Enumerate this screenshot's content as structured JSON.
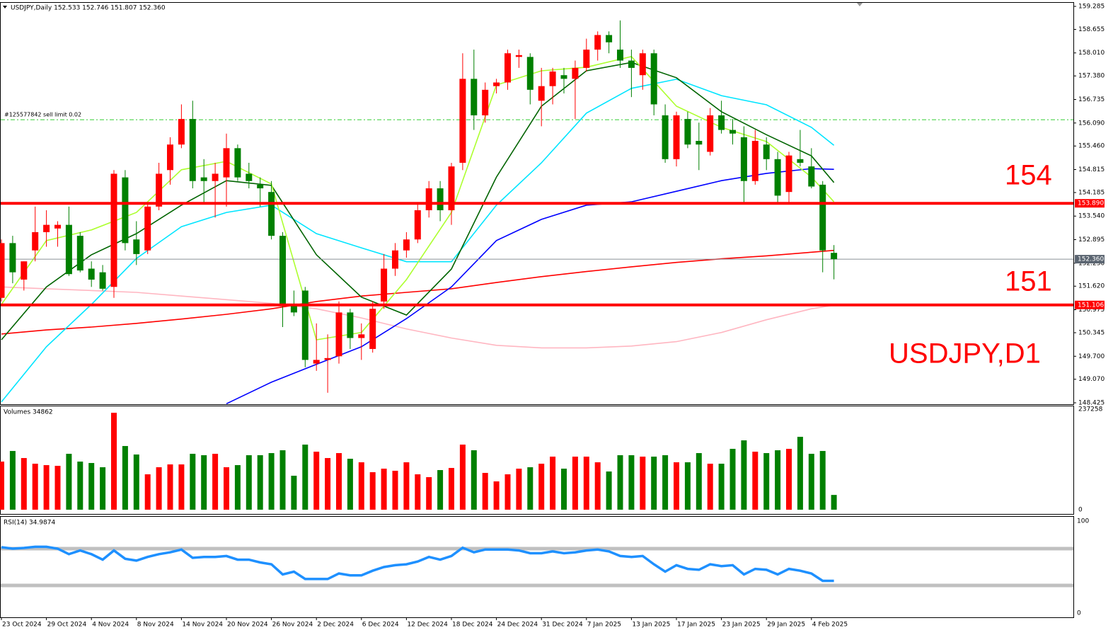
{
  "chart_data": [
    {
      "type": "candlestick",
      "title": "USDJPY,Daily  152.533 152.746 151.807 152.360",
      "categories": [
        "23 Oct 2024",
        null,
        null,
        null,
        "29 Oct 2024",
        null,
        null,
        null,
        "4 Nov 2024",
        null,
        null,
        null,
        "8 Nov 2024",
        null,
        null,
        null,
        "14 Nov 2024",
        null,
        null,
        null,
        "20 Nov 2024",
        null,
        null,
        null,
        "26 Nov 2024",
        null,
        null,
        null,
        "2 Dec 2024",
        null,
        null,
        null,
        "6 Dec 2024",
        null,
        null,
        null,
        "12 Dec 2024",
        null,
        null,
        null,
        "18 Dec 2024",
        null,
        null,
        null,
        "24 Dec 2024",
        null,
        null,
        null,
        "31 Dec 2024",
        null,
        null,
        null,
        "7 Jan 2025",
        null,
        null,
        null,
        "13 Jan 2025",
        null,
        null,
        null,
        "17 Jan 2025",
        null,
        null,
        null,
        "23 Jan 2025",
        null,
        null,
        null,
        "29 Jan 2025",
        null,
        null,
        null,
        "4 Feb 2025",
        null,
        null
      ],
      "open": [
        151.3,
        152.8,
        151.8,
        152.6,
        153.1,
        153.2,
        153.3,
        153.0,
        152.1,
        152.0,
        151.6,
        154.6,
        152.9,
        152.6,
        153.8,
        154.8,
        155.5,
        156.2,
        154.6,
        154.5,
        154.6,
        155.4,
        154.7,
        154.4,
        154.2,
        153.0,
        151.1,
        151.5,
        149.5,
        149.6,
        149.7,
        150.9,
        150.2,
        149.9,
        151.2,
        152.1,
        152.6,
        152.9,
        153.7,
        154.3,
        153.7,
        155.0,
        157.3,
        156.3,
        157.1,
        157.2,
        157.9,
        157.9,
        156.7,
        157.1,
        157.4,
        157.3,
        157.6,
        158.1,
        158.5,
        158.1,
        157.8,
        157.4,
        158.0,
        156.3,
        155.1,
        156.2,
        155.6,
        155.3,
        156.3,
        155.9,
        155.7,
        154.5,
        155.5,
        155.1,
        154.2,
        155.1,
        154.9,
        154.4,
        152.533
      ],
      "high": [
        152.9,
        153.0,
        152.3,
        153.8,
        153.7,
        153.4,
        153.8,
        153.1,
        152.3,
        152.2,
        154.8,
        154.8,
        153.4,
        153.9,
        155.0,
        155.7,
        156.6,
        156.7,
        155.1,
        155.0,
        155.8,
        155.5,
        155.0,
        154.6,
        154.5,
        153.1,
        151.5,
        151.6,
        150.6,
        150.3,
        151.2,
        151.0,
        150.6,
        151.2,
        152.5,
        152.8,
        153.1,
        153.9,
        154.5,
        154.5,
        155.0,
        158.0,
        158.1,
        157.2,
        157.3,
        158.1,
        158.1,
        158.0,
        157.6,
        157.6,
        157.6,
        157.8,
        158.4,
        158.6,
        158.6,
        158.9,
        158.1,
        158.1,
        158.1,
        156.6,
        156.4,
        156.4,
        156.1,
        156.5,
        156.7,
        156.2,
        156.0,
        155.9,
        155.7,
        155.3,
        155.3,
        155.9,
        155.4,
        154.5,
        152.746
      ],
      "low": [
        151.2,
        151.7,
        151.5,
        152.3,
        152.7,
        152.7,
        151.9,
        152.0,
        151.6,
        151.5,
        151.3,
        152.6,
        152.2,
        152.5,
        153.7,
        154.4,
        155.4,
        154.3,
        153.9,
        153.5,
        153.8,
        154.5,
        154.3,
        153.8,
        152.9,
        150.5,
        150.8,
        149.4,
        149.3,
        148.7,
        149.5,
        149.9,
        149.6,
        149.8,
        151.0,
        151.9,
        152.4,
        152.8,
        153.5,
        153.4,
        153.3,
        154.8,
        155.9,
        156.1,
        156.9,
        157.0,
        157.6,
        156.6,
        156.0,
        156.6,
        156.9,
        156.2,
        157.5,
        157.8,
        158.0,
        157.6,
        156.8,
        157.0,
        156.3,
        155.0,
        154.9,
        155.4,
        154.8,
        155.2,
        155.8,
        155.5,
        153.9,
        154.4,
        154.8,
        153.9,
        153.9,
        154.9,
        154.3,
        152.0,
        151.807
      ],
      "close": [
        152.8,
        152.0,
        152.3,
        153.1,
        153.3,
        153.3,
        151.95,
        152.05,
        151.8,
        151.55,
        154.7,
        152.8,
        152.5,
        153.8,
        154.7,
        155.5,
        156.2,
        154.5,
        154.5,
        154.7,
        155.4,
        154.6,
        154.5,
        154.3,
        153.0,
        151.1,
        150.9,
        149.6,
        149.6,
        149.65,
        150.9,
        150.2,
        150.3,
        151.0,
        152.1,
        152.6,
        152.9,
        153.7,
        154.3,
        153.7,
        154.9,
        157.3,
        156.3,
        157.0,
        157.2,
        158.0,
        157.95,
        157.0,
        157.1,
        157.5,
        157.3,
        157.6,
        158.1,
        158.5,
        158.3,
        157.8,
        157.6,
        158.0,
        156.6,
        155.1,
        156.3,
        155.5,
        155.5,
        156.3,
        155.9,
        155.8,
        154.5,
        155.6,
        155.1,
        154.1,
        155.2,
        155.0,
        154.35,
        152.6,
        152.36
      ],
      "up_color": "#ff0000",
      "down_color": "#008000",
      "ylim": [
        148.425,
        159.285
      ],
      "yticks": [
        {
          "value": 159.285,
          "label": "159.285"
        },
        {
          "value": 158.655,
          "label": "158.655"
        },
        {
          "value": 158.01,
          "label": "158.010"
        },
        {
          "value": 157.38,
          "label": "157.380"
        },
        {
          "value": 156.735,
          "label": "156.735"
        },
        {
          "value": 156.09,
          "label": "156.090"
        },
        {
          "value": 155.46,
          "label": "155.460"
        },
        {
          "value": 154.815,
          "label": "154.815"
        },
        {
          "value": 154.185,
          "label": "154.185"
        },
        {
          "value": 153.54,
          "label": "153.540"
        },
        {
          "value": 152.895,
          "label": "152.895"
        },
        {
          "value": 152.25,
          "label": "152.250"
        },
        {
          "value": 151.62,
          "label": "151.620"
        },
        {
          "value": 150.975,
          "label": "150.975"
        },
        {
          "value": 150.345,
          "label": "150.345"
        },
        {
          "value": 149.7,
          "label": "149.700"
        },
        {
          "value": 149.07,
          "label": "149.070"
        },
        {
          "value": 148.425,
          "label": "148.425"
        }
      ],
      "moving_averages": [
        {
          "color": "#ffb6c1",
          "x": [
            0,
            4,
            8,
            12,
            16,
            20,
            24,
            28,
            32,
            36,
            40,
            44,
            48,
            52,
            56,
            60,
            64,
            68,
            72,
            74
          ],
          "values": [
            151.6,
            151.55,
            151.5,
            151.45,
            151.35,
            151.25,
            151.15,
            151.0,
            150.75,
            150.45,
            150.2,
            150.0,
            149.93,
            149.93,
            149.98,
            150.1,
            150.35,
            150.7,
            151.0,
            151.1
          ]
        },
        {
          "color": "#ff0000",
          "x": [
            0,
            4,
            8,
            12,
            16,
            20,
            24,
            28,
            32,
            36,
            40,
            44,
            48,
            52,
            56,
            60,
            64,
            68,
            72,
            74
          ],
          "values": [
            150.31,
            150.42,
            150.5,
            150.6,
            150.72,
            150.85,
            151.0,
            151.2,
            151.35,
            151.45,
            151.55,
            151.72,
            151.88,
            152.02,
            152.15,
            152.27,
            152.37,
            152.45,
            152.55,
            152.6
          ]
        },
        {
          "color": "#0000ff",
          "x": [
            20,
            24,
            28,
            32,
            36,
            40,
            44,
            48,
            52,
            56,
            60,
            64,
            68,
            72,
            74
          ],
          "values": [
            148.4,
            148.99,
            149.48,
            149.96,
            150.73,
            151.6,
            152.87,
            153.45,
            153.84,
            153.93,
            154.22,
            154.51,
            154.71,
            154.84,
            154.82
          ]
        },
        {
          "color": "#00e5ff",
          "x": [
            0,
            4,
            8,
            12,
            16,
            20,
            24,
            28,
            32,
            36,
            40,
            44,
            48,
            52,
            56,
            60,
            64,
            68,
            72,
            74
          ],
          "values": [
            148.45,
            149.96,
            151.12,
            152.38,
            153.25,
            153.64,
            153.84,
            153.06,
            152.67,
            152.29,
            152.29,
            153.84,
            155.0,
            156.36,
            157.04,
            157.29,
            156.84,
            156.59,
            155.97,
            155.48
          ]
        },
        {
          "color": "#006400",
          "x": [
            0,
            4,
            8,
            12,
            16,
            20,
            24,
            28,
            32,
            36,
            40,
            44,
            48,
            52,
            56,
            60,
            64,
            68,
            72,
            74
          ],
          "values": [
            150.15,
            151.6,
            152.48,
            153.06,
            153.84,
            154.51,
            154.38,
            152.48,
            151.32,
            150.83,
            152.09,
            154.61,
            156.55,
            157.52,
            157.75,
            157.33,
            156.4,
            155.77,
            155.19,
            154.46
          ]
        },
        {
          "color": "#adff2f",
          "x": [
            0,
            4,
            8,
            12,
            16,
            20,
            24,
            28,
            32,
            36,
            40,
            44,
            48,
            52,
            56,
            60,
            64,
            68,
            72,
            74
          ],
          "values": [
            151.12,
            152.87,
            153.16,
            153.64,
            154.81,
            155.04,
            154.42,
            150.15,
            150.35,
            151.8,
            153.64,
            157.13,
            157.52,
            157.62,
            157.91,
            156.55,
            155.97,
            155.58,
            154.61,
            153.93
          ]
        }
      ],
      "levels": [
        {
          "value": 153.89,
          "label": "153.890",
          "color": "#ff0000"
        },
        {
          "value": 151.106,
          "label": "151.106",
          "color": "#ff0000"
        }
      ],
      "last_price": {
        "value": 152.36,
        "label": "152.360",
        "color": "#5a6470"
      },
      "order": {
        "value": 156.18,
        "label": "#125577842 sell limit 0.02",
        "color": "#32cd32"
      },
      "annotations": [
        "154",
        "151",
        "USDJPY,D1"
      ]
    },
    {
      "type": "bar",
      "title": "Volumes 34862",
      "values": [
        113560,
        138610,
        121910,
        108550,
        105210,
        103540,
        131930,
        113560,
        110220,
        100200,
        228790,
        150300,
        130260,
        83500,
        100200,
        106880,
        106880,
        131930,
        128590,
        131930,
        100200,
        105210,
        128590,
        128590,
        133600,
        140280,
        80160,
        153640,
        136940,
        121910,
        133600,
        120240,
        111890,
        88510,
        96860,
        91850,
        111890,
        83500,
        76820,
        93520,
        98530,
        153640,
        140280,
        86840,
        66800,
        83500,
        96860,
        100200,
        108550,
        125250,
        96860,
        125250,
        125250,
        111890,
        90180,
        128590,
        128590,
        125250,
        125250,
        128590,
        111890,
        111890,
        133600,
        108550,
        108550,
        143620,
        163660,
        136940,
        133600,
        140280,
        143620,
        172010,
        131930,
        138610,
        34862
      ],
      "ylim": [
        0,
        237258
      ],
      "yticks": [
        0,
        237258
      ]
    },
    {
      "type": "line",
      "title": "RSI(14) 34.9874",
      "color": "#1e90ff",
      "values": [
        71.5,
        70,
        70.8,
        72,
        72,
        70,
        64,
        68,
        64,
        58,
        68,
        59,
        57,
        61,
        64,
        66,
        69,
        60,
        61,
        61,
        62,
        58,
        58,
        55,
        53,
        42,
        45,
        37,
        37,
        37,
        43,
        41,
        41,
        46,
        50,
        52,
        53,
        56,
        61,
        58,
        62,
        71,
        66,
        69,
        69,
        69,
        68,
        65,
        65,
        67,
        65,
        66,
        68,
        69,
        67,
        62,
        61,
        62,
        53,
        45,
        52,
        48,
        47,
        53,
        51,
        52,
        42,
        48,
        47,
        42,
        48,
        46,
        43,
        35,
        34.9874
      ],
      "ylim": [
        0,
        100
      ],
      "yticks": [
        0,
        30,
        70,
        100
      ]
    }
  ]
}
